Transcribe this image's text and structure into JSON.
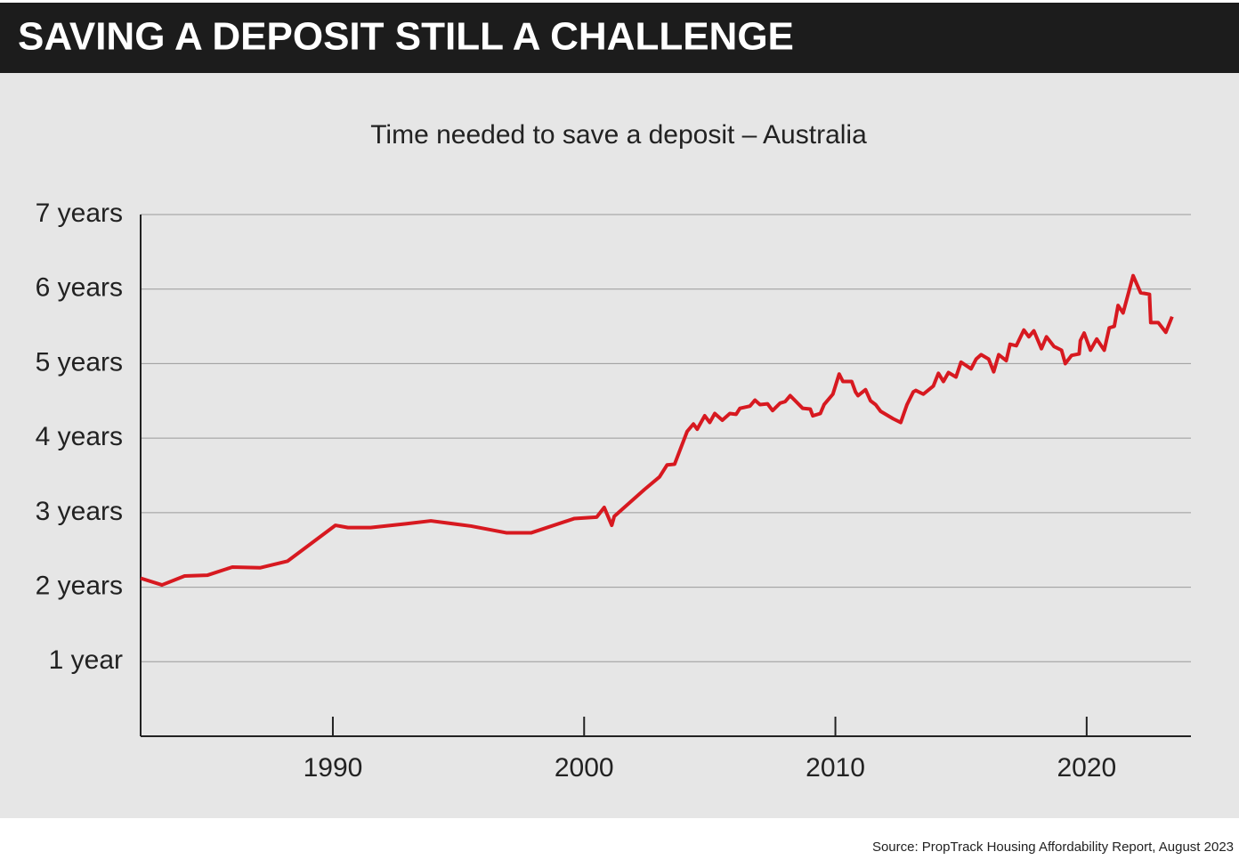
{
  "header": {
    "title": "SAVING A DEPOSIT STILL A CHALLENGE"
  },
  "source": "Source: PropTrack Housing Affordability Report, August 2023",
  "chart_data": {
    "type": "line",
    "title": "Time needed to save a deposit – Australia",
    "x": [
      1982.35,
      1983.2,
      1984.1,
      1985.0,
      1986.0,
      1987.1,
      1988.2,
      1990.1,
      1990.6,
      1991.5,
      1992.9,
      1993.9,
      1995.5,
      1996.9,
      1997.9,
      1999.6,
      2000.5,
      2000.8,
      2001.1,
      2001.2,
      2002.4,
      2003.0,
      2003.3,
      2003.6,
      2004.1,
      2004.35,
      2004.5,
      2004.8,
      2005.0,
      2005.2,
      2005.5,
      2005.8,
      2006.05,
      2006.2,
      2006.6,
      2006.8,
      2007.0,
      2007.3,
      2007.5,
      2007.8,
      2008.0,
      2008.2,
      2008.7,
      2009.0,
      2009.1,
      2009.4,
      2009.55,
      2009.9,
      2010.15,
      2010.3,
      2010.65,
      2010.8,
      2010.9,
      2011.2,
      2011.4,
      2011.6,
      2011.8,
      2012.3,
      2012.6,
      2012.85,
      2013.1,
      2013.2,
      2013.5,
      2013.9,
      2014.1,
      2014.3,
      2014.5,
      2014.8,
      2015.0,
      2015.4,
      2015.6,
      2015.8,
      2016.1,
      2016.3,
      2016.5,
      2016.8,
      2016.95,
      2017.2,
      2017.5,
      2017.7,
      2017.9,
      2018.2,
      2018.4,
      2018.7,
      2019.0,
      2019.15,
      2019.4,
      2019.7,
      2019.75,
      2019.9,
      2020.15,
      2020.4,
      2020.7,
      2020.9,
      2021.1,
      2021.25,
      2021.45,
      2021.85,
      2022.15,
      2022.5,
      2022.55,
      2022.85,
      2023.15,
      2023.4
    ],
    "series": [
      {
        "name": "Time needed to save a deposit",
        "color": "#d71920",
        "values": [
          2.12,
          2.03,
          2.15,
          2.16,
          2.27,
          2.26,
          2.35,
          2.83,
          2.8,
          2.8,
          2.85,
          2.89,
          2.82,
          2.73,
          2.73,
          2.92,
          2.94,
          3.07,
          2.83,
          2.95,
          3.31,
          3.48,
          3.64,
          3.65,
          4.09,
          4.19,
          4.12,
          4.3,
          4.21,
          4.33,
          4.24,
          4.33,
          4.32,
          4.4,
          4.43,
          4.51,
          4.45,
          4.46,
          4.37,
          4.47,
          4.49,
          4.57,
          4.4,
          4.39,
          4.3,
          4.33,
          4.45,
          4.59,
          4.86,
          4.76,
          4.76,
          4.62,
          4.57,
          4.65,
          4.5,
          4.45,
          4.36,
          4.26,
          4.21,
          4.45,
          4.62,
          4.64,
          4.59,
          4.7,
          4.87,
          4.76,
          4.88,
          4.82,
          5.02,
          4.93,
          5.06,
          5.12,
          5.06,
          4.89,
          5.12,
          5.04,
          5.26,
          5.24,
          5.45,
          5.36,
          5.44,
          5.2,
          5.36,
          5.23,
          5.18,
          5.0,
          5.11,
          5.13,
          5.31,
          5.41,
          5.18,
          5.33,
          5.18,
          5.48,
          5.5,
          5.78,
          5.68,
          6.18,
          5.95,
          5.93,
          5.55,
          5.55,
          5.42,
          5.63
        ]
      }
    ],
    "xlim": [
      1982.35,
      2024.15
    ],
    "xticks": [
      1990,
      2000,
      2010,
      2020
    ],
    "ylim": [
      0,
      7
    ],
    "yticks": [
      {
        "value": 1,
        "label": "1 year"
      },
      {
        "value": 2,
        "label": "2 years"
      },
      {
        "value": 3,
        "label": "3 years"
      },
      {
        "value": 4,
        "label": "4 years"
      },
      {
        "value": 5,
        "label": "5 years"
      },
      {
        "value": 6,
        "label": "6 years"
      },
      {
        "value": 7,
        "label": "7 years"
      }
    ],
    "grid": true
  }
}
